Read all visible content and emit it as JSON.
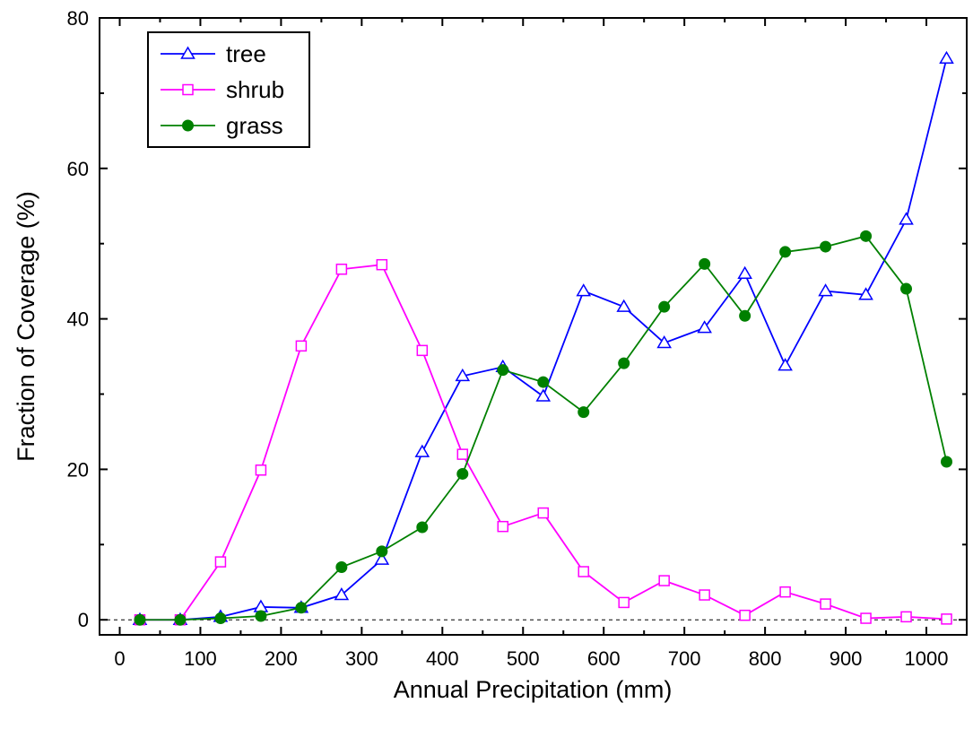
{
  "chart_data": {
    "type": "line",
    "xlabel": "Annual Precipitation (mm)",
    "ylabel": "Fraction of Coverage (%)",
    "xlim": [
      -25,
      1050
    ],
    "ylim": [
      -2,
      80
    ],
    "x_ticks": [
      0,
      100,
      200,
      300,
      400,
      500,
      600,
      700,
      800,
      900,
      1000
    ],
    "y_ticks": [
      0,
      20,
      40,
      60,
      80
    ],
    "grid": false,
    "zero_line": "dashed",
    "legend_placement": "top-left",
    "x": [
      25,
      75,
      125,
      175,
      225,
      275,
      325,
      375,
      425,
      475,
      525,
      575,
      625,
      675,
      725,
      775,
      825,
      875,
      925,
      975,
      1025
    ],
    "series": [
      {
        "name": "tree",
        "color": "#0000ff",
        "marker": "open-triangle",
        "values": [
          0,
          0,
          0.4,
          1.7,
          1.6,
          3.3,
          8.0,
          22.3,
          32.4,
          33.6,
          29.7,
          43.7,
          41.6,
          36.8,
          38.8,
          46.0,
          33.8,
          43.7,
          43.2,
          53.2,
          74.6
        ]
      },
      {
        "name": "shrub",
        "color": "#ff00ff",
        "marker": "open-square",
        "values": [
          0,
          0,
          7.7,
          19.9,
          36.4,
          46.6,
          47.2,
          35.8,
          22.0,
          12.4,
          14.2,
          6.4,
          2.3,
          5.2,
          3.3,
          0.6,
          3.7,
          2.1,
          0.2,
          0.4,
          0.1
        ]
      },
      {
        "name": "grass",
        "color": "#008000",
        "marker": "filled-circle",
        "values": [
          0,
          0,
          0.2,
          0.5,
          1.6,
          7.0,
          9.1,
          12.3,
          19.4,
          33.2,
          31.6,
          27.6,
          34.1,
          41.6,
          47.3,
          40.4,
          48.9,
          49.6,
          51.0,
          44.0,
          21.0
        ]
      }
    ]
  }
}
